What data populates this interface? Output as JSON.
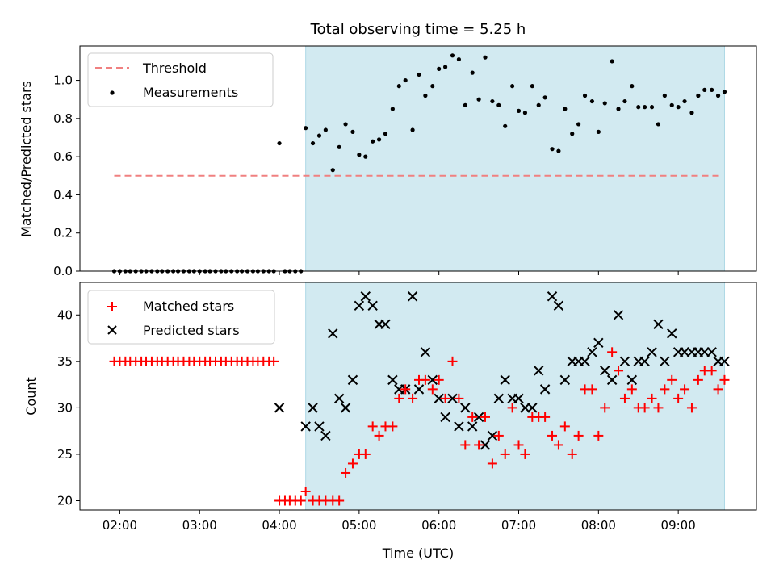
{
  "figure": {
    "title": "Total observing time = 5.25 h"
  },
  "colors": {
    "threshold": "#f08080",
    "measurements": "#000000",
    "matched": "#ff0000",
    "predicted": "#000000",
    "observing_window": "#add8e6"
  },
  "chart_data": [
    {
      "type": "scatter",
      "xlabel": "",
      "ylabel": "Matched/Predicted stars",
      "x_units": "hours UTC",
      "xlim": [
        1.5,
        9.98
      ],
      "ylim": [
        0.0,
        1.18
      ],
      "yticks": [
        0.0,
        0.2,
        0.4,
        0.6,
        0.8,
        1.0
      ],
      "ytick_labels": [
        "0.0",
        "0.2",
        "0.4",
        "0.6",
        "0.8",
        "1.0"
      ],
      "shaded_interval": [
        4.33,
        9.58
      ],
      "legend": {
        "position": "top-left",
        "entries": [
          "Threshold",
          "Measurements"
        ]
      },
      "series": [
        {
          "name": "Threshold",
          "kind": "dashed-line",
          "x": [
            1.93,
            9.55
          ],
          "y": [
            0.5,
            0.5
          ]
        },
        {
          "name": "Measurements",
          "kind": "points",
          "x": [
            1.93,
            2.0,
            2.07,
            2.13,
            2.2,
            2.27,
            2.33,
            2.4,
            2.47,
            2.53,
            2.6,
            2.67,
            2.73,
            2.8,
            2.87,
            2.93,
            3.0,
            3.07,
            3.13,
            3.2,
            3.27,
            3.33,
            3.4,
            3.47,
            3.53,
            3.6,
            3.67,
            3.73,
            3.8,
            3.87,
            3.93,
            4.0,
            4.07,
            4.13,
            4.2,
            4.27,
            4.33,
            4.42,
            4.5,
            4.58,
            4.67,
            4.75,
            4.83,
            4.92,
            5.0,
            5.08,
            5.17,
            5.25,
            5.33,
            5.42,
            5.5,
            5.58,
            5.67,
            5.75,
            5.83,
            5.92,
            6.0,
            6.08,
            6.17,
            6.25,
            6.33,
            6.42,
            6.5,
            6.58,
            6.67,
            6.75,
            6.83,
            6.92,
            7.0,
            7.08,
            7.17,
            7.25,
            7.33,
            7.42,
            7.5,
            7.58,
            7.67,
            7.75,
            7.83,
            7.92,
            8.0,
            8.08,
            8.17,
            8.25,
            8.33,
            8.42,
            8.5,
            8.58,
            8.67,
            8.75,
            8.83,
            8.92,
            9.0,
            9.08,
            9.17,
            9.25,
            9.33,
            9.42,
            9.5,
            9.58
          ],
          "y": [
            0.0,
            0.0,
            0.0,
            0.0,
            0.0,
            0.0,
            0.0,
            0.0,
            0.0,
            0.0,
            0.0,
            0.0,
            0.0,
            0.0,
            0.0,
            0.0,
            0.0,
            0.0,
            0.0,
            0.0,
            0.0,
            0.0,
            0.0,
            0.0,
            0.0,
            0.0,
            0.0,
            0.0,
            0.0,
            0.0,
            0.0,
            0.67,
            0.0,
            0.0,
            0.0,
            0.0,
            0.75,
            0.67,
            0.71,
            0.74,
            0.53,
            0.65,
            0.77,
            0.73,
            0.61,
            0.6,
            0.68,
            0.69,
            0.72,
            0.85,
            0.97,
            1.0,
            0.74,
            1.03,
            0.92,
            0.97,
            1.06,
            1.07,
            1.13,
            1.11,
            0.87,
            1.04,
            0.9,
            1.12,
            0.89,
            0.87,
            0.76,
            0.97,
            0.84,
            0.83,
            0.97,
            0.87,
            0.91,
            0.64,
            0.63,
            0.85,
            0.72,
            0.77,
            0.92,
            0.89,
            0.73,
            0.88,
            1.1,
            0.85,
            0.89,
            0.97,
            0.86,
            0.86,
            0.86,
            0.77,
            0.92,
            0.87,
            0.86,
            0.89,
            0.83,
            0.92,
            0.95,
            0.95,
            0.92,
            0.94
          ]
        }
      ]
    },
    {
      "type": "scatter",
      "xlabel": "Time (UTC)",
      "ylabel": "Count",
      "x_units": "hours UTC",
      "xlim": [
        1.5,
        9.98
      ],
      "ylim": [
        19.0,
        43.5
      ],
      "yticks": [
        20,
        25,
        30,
        35,
        40
      ],
      "ytick_labels": [
        "20",
        "25",
        "30",
        "35",
        "40"
      ],
      "xticks": [
        2,
        3,
        4,
        5,
        6,
        7,
        8,
        9
      ],
      "xtick_labels": [
        "02:00",
        "03:00",
        "04:00",
        "05:00",
        "06:00",
        "07:00",
        "08:00",
        "09:00"
      ],
      "shaded_interval": [
        4.33,
        9.58
      ],
      "legend": {
        "position": "top-left",
        "entries": [
          "Matched stars",
          "Predicted stars"
        ]
      },
      "series": [
        {
          "name": "Matched stars",
          "marker": "plus",
          "x": [
            1.93,
            2.0,
            2.07,
            2.13,
            2.2,
            2.27,
            2.33,
            2.4,
            2.47,
            2.53,
            2.6,
            2.67,
            2.73,
            2.8,
            2.87,
            2.93,
            3.0,
            3.07,
            3.13,
            3.2,
            3.27,
            3.33,
            3.4,
            3.47,
            3.53,
            3.6,
            3.67,
            3.73,
            3.8,
            3.87,
            3.93,
            4.0,
            4.07,
            4.13,
            4.2,
            4.27,
            4.33,
            4.42,
            4.5,
            4.58,
            4.67,
            4.75,
            4.83,
            4.92,
            5.0,
            5.08,
            5.17,
            5.25,
            5.33,
            5.42,
            5.5,
            5.58,
            5.67,
            5.75,
            5.83,
            5.92,
            6.0,
            6.08,
            6.17,
            6.25,
            6.33,
            6.42,
            6.5,
            6.58,
            6.67,
            6.75,
            6.83,
            6.92,
            7.0,
            7.08,
            7.17,
            7.25,
            7.33,
            7.42,
            7.5,
            7.58,
            7.67,
            7.75,
            7.83,
            7.92,
            8.0,
            8.08,
            8.17,
            8.25,
            8.33,
            8.42,
            8.5,
            8.58,
            8.67,
            8.75,
            8.83,
            8.92,
            9.0,
            9.08,
            9.17,
            9.25,
            9.33,
            9.42,
            9.5,
            9.58
          ],
          "y": [
            35,
            35,
            35,
            35,
            35,
            35,
            35,
            35,
            35,
            35,
            35,
            35,
            35,
            35,
            35,
            35,
            35,
            35,
            35,
            35,
            35,
            35,
            35,
            35,
            35,
            35,
            35,
            35,
            35,
            35,
            35,
            20,
            20,
            20,
            20,
            20,
            21,
            20,
            20,
            20,
            20,
            20,
            23,
            24,
            25,
            25,
            28,
            27,
            28,
            28,
            31,
            32,
            31,
            33,
            33,
            32,
            33,
            31,
            35,
            31,
            26,
            29,
            26,
            29,
            24,
            27,
            25,
            30,
            26,
            25,
            29,
            29,
            29,
            27,
            26,
            28,
            25,
            27,
            32,
            32,
            27,
            30,
            36,
            34,
            31,
            32,
            30,
            30,
            31,
            30,
            32,
            33,
            31,
            32,
            30,
            33,
            34,
            34,
            32,
            33
          ]
        },
        {
          "name": "Predicted stars",
          "marker": "x",
          "x": [
            4.0,
            4.33,
            4.42,
            4.5,
            4.58,
            4.67,
            4.75,
            4.83,
            4.92,
            5.0,
            5.08,
            5.17,
            5.25,
            5.33,
            5.42,
            5.5,
            5.58,
            5.67,
            5.75,
            5.83,
            5.92,
            6.0,
            6.08,
            6.17,
            6.25,
            6.33,
            6.42,
            6.5,
            6.58,
            6.67,
            6.75,
            6.83,
            6.92,
            7.0,
            7.08,
            7.17,
            7.25,
            7.33,
            7.42,
            7.5,
            7.58,
            7.67,
            7.75,
            7.83,
            7.92,
            8.0,
            8.08,
            8.17,
            8.25,
            8.33,
            8.42,
            8.5,
            8.58,
            8.67,
            8.75,
            8.83,
            8.92,
            9.0,
            9.08,
            9.17,
            9.25,
            9.33,
            9.42,
            9.5,
            9.58
          ],
          "y": [
            30,
            28,
            30,
            28,
            27,
            38,
            31,
            30,
            33,
            41,
            42,
            41,
            39,
            39,
            33,
            32,
            32,
            42,
            32,
            36,
            33,
            31,
            29,
            31,
            28,
            30,
            28,
            29,
            26,
            27,
            31,
            33,
            31,
            31,
            30,
            30,
            34,
            32,
            42,
            41,
            33,
            35,
            35,
            35,
            36,
            37,
            34,
            33,
            40,
            35,
            33,
            35,
            35,
            36,
            39,
            35,
            38,
            36,
            36,
            36,
            36,
            36,
            36,
            35,
            35
          ]
        }
      ]
    }
  ]
}
